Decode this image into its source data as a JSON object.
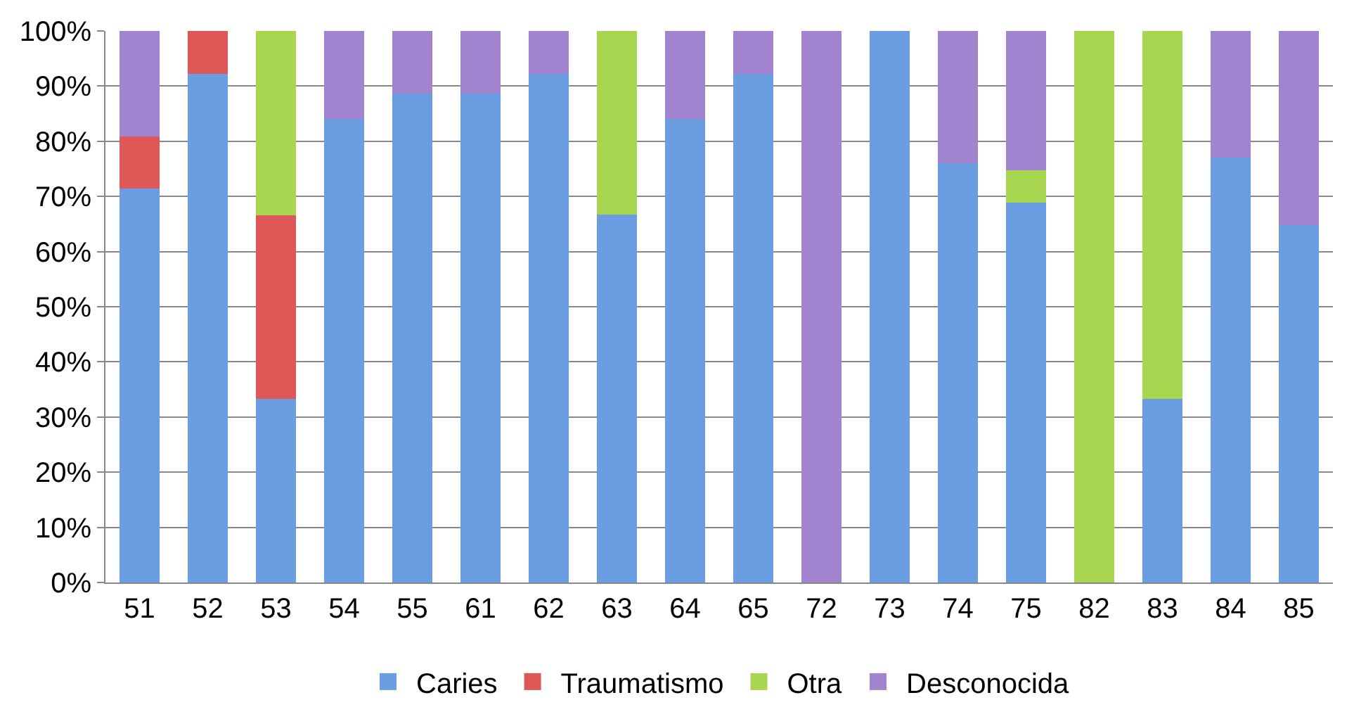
{
  "chart_data": {
    "type": "bar",
    "stacked": true,
    "categories": [
      "51",
      "52",
      "53",
      "54",
      "55",
      "61",
      "62",
      "63",
      "64",
      "65",
      "72",
      "73",
      "74",
      "75",
      "82",
      "83",
      "84",
      "85"
    ],
    "series": [
      {
        "name": "Caries",
        "color": "#6b9de3",
        "values": [
          71.4,
          92.2,
          33.3,
          84,
          88.6,
          88.6,
          92.2,
          66.7,
          84,
          92.2,
          0,
          100,
          76,
          68.9,
          0,
          33.3,
          77,
          64.8
        ]
      },
      {
        "name": "Traumatismo",
        "color": "#e05757",
        "values": [
          9.5,
          7.8,
          33.3,
          0,
          0,
          0,
          0,
          0,
          0,
          0,
          0,
          0,
          0,
          0,
          0,
          0,
          0,
          0
        ]
      },
      {
        "name": "Otra",
        "color": "#a9d651",
        "values": [
          0,
          0,
          33.4,
          0,
          0,
          0,
          0,
          33.3,
          0,
          0,
          0,
          0,
          0,
          5.8,
          100,
          66.7,
          0,
          0
        ]
      },
      {
        "name": "Desconocida",
        "color": "#a183cf",
        "values": [
          19.1,
          0,
          0,
          16,
          11.4,
          11.4,
          7.8,
          0,
          16,
          7.8,
          100,
          0,
          24,
          25.3,
          0,
          0,
          23,
          35.2
        ]
      }
    ],
    "ylim": [
      0,
      100
    ],
    "yticks": [
      {
        "value": 0,
        "label": "0%"
      },
      {
        "value": 10,
        "label": "10%"
      },
      {
        "value": 20,
        "label": "20%"
      },
      {
        "value": 30,
        "label": "30%"
      },
      {
        "value": 40,
        "label": "40%"
      },
      {
        "value": 50,
        "label": "50%"
      },
      {
        "value": 60,
        "label": "60%"
      },
      {
        "value": 70,
        "label": "70%"
      },
      {
        "value": 80,
        "label": "80%"
      },
      {
        "value": 90,
        "label": "90%"
      },
      {
        "value": 100,
        "label": "100%"
      }
    ],
    "grid": "y",
    "legend": "bottom"
  }
}
